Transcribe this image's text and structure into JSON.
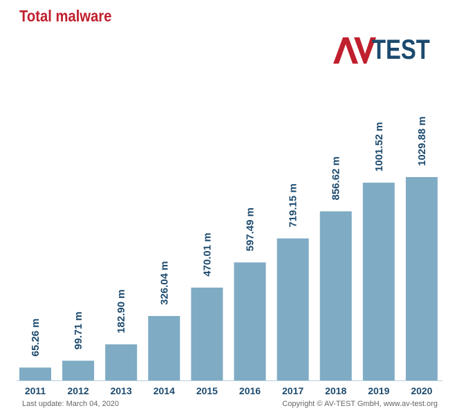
{
  "header": {
    "title": "Total malware"
  },
  "logo": {
    "brand_text": "AV-TEST",
    "letters": "TEST",
    "brand_color": "#c0202e",
    "text_color": "#1c4a6e"
  },
  "chart_data": {
    "type": "bar",
    "title": "Total malware",
    "unit_suffix": " m",
    "categories": [
      "2011",
      "2012",
      "2013",
      "2014",
      "2015",
      "2016",
      "2017",
      "2018",
      "2019",
      "2020"
    ],
    "values": [
      65.26,
      99.71,
      182.9,
      326.04,
      470.01,
      597.49,
      719.15,
      856.62,
      1001.52,
      1029.88
    ],
    "labels": [
      "65.26 m",
      "99.71 m",
      "182.90 m",
      "326.04 m",
      "470.01 m",
      "597.49 m",
      "719.15 m",
      "856.62 m",
      "1001.52 m",
      "1029.88 m"
    ],
    "bar_color": "#7fabc4",
    "grid": false,
    "legend": "none"
  },
  "footer": {
    "last_update": "Last update: March 04, 2020",
    "copyright": "Copyright © AV-TEST GmbH, www.av-test.org"
  }
}
